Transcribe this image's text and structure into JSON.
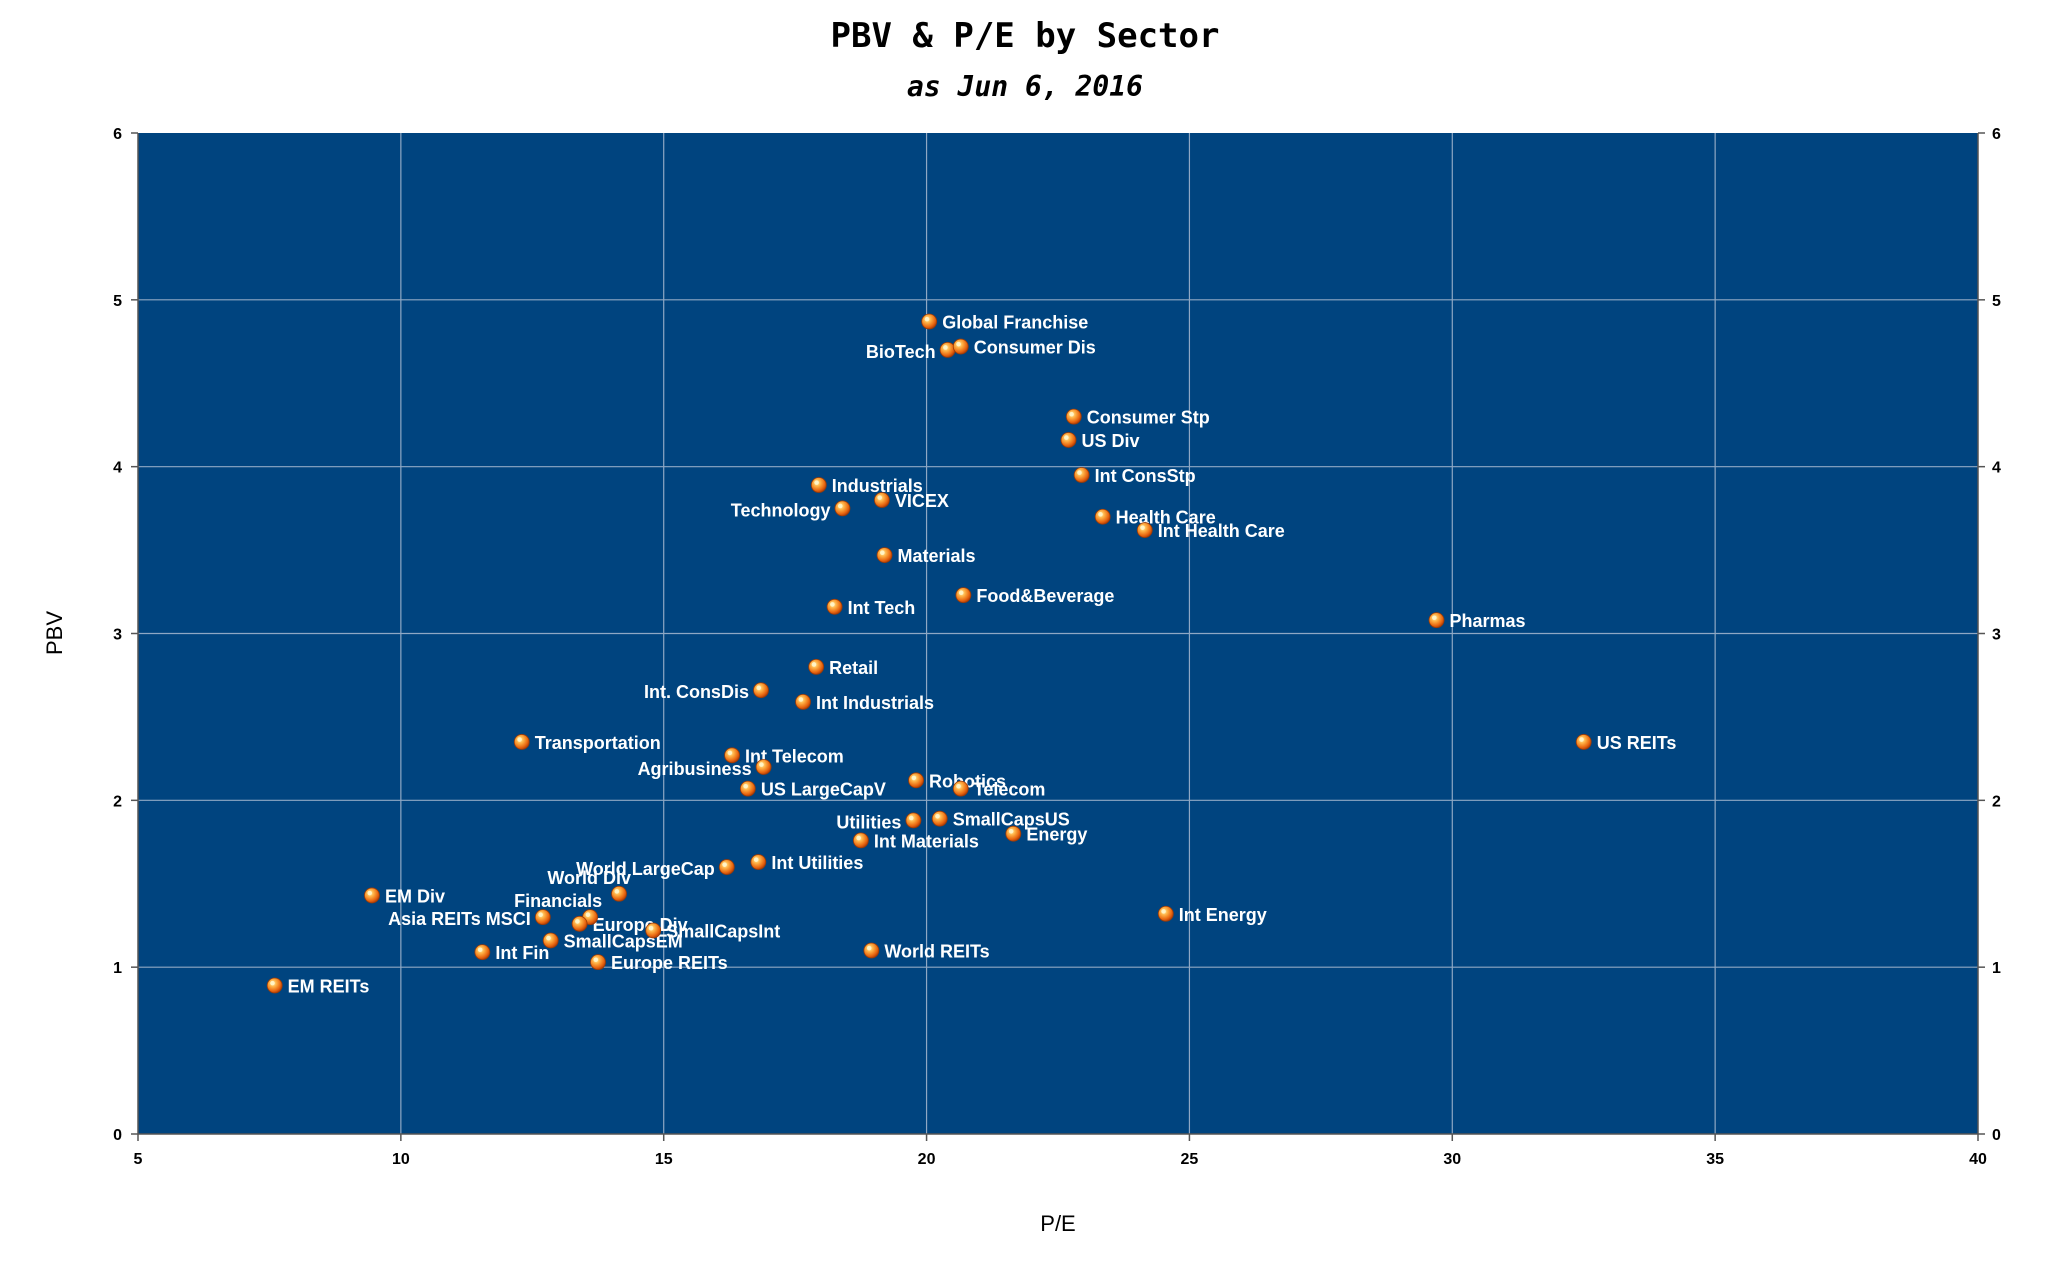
{
  "chart_data": {
    "type": "scatter",
    "title": "PBV & P/E by Sector",
    "subtitle": "as Jun 6, 2016",
    "xlabel": "P/E",
    "ylabel": "PBV",
    "xlim": [
      5,
      40
    ],
    "ylim": [
      0,
      6
    ],
    "xticks": [
      5,
      10,
      15,
      20,
      25,
      30,
      35,
      40
    ],
    "yticks": [
      0,
      1,
      2,
      3,
      4,
      5,
      6
    ],
    "secondary_y_axis": true,
    "grid": true,
    "legend": "none",
    "colors": {
      "plot_background": "#00447f",
      "grid": "#8fa8c4",
      "point_fill": "#f5821f",
      "point_highlight": "#ffe27a",
      "label": "#ffffff"
    },
    "points": [
      {
        "label": "Global Franchise",
        "x": 20.05,
        "y": 4.87,
        "label_side": "right"
      },
      {
        "label": "BioTech",
        "x": 20.4,
        "y": 4.7,
        "label_side": "left"
      },
      {
        "label": "Consumer Dis",
        "x": 20.65,
        "y": 4.72,
        "label_side": "right"
      },
      {
        "label": "Consumer Stp",
        "x": 22.8,
        "y": 4.3,
        "label_side": "right"
      },
      {
        "label": "US Div",
        "x": 22.7,
        "y": 4.16,
        "label_side": "right"
      },
      {
        "label": "Int ConsStp",
        "x": 22.95,
        "y": 3.95,
        "label_side": "right"
      },
      {
        "label": "Industrials",
        "x": 17.95,
        "y": 3.89,
        "label_side": "right"
      },
      {
        "label": "VICEX",
        "x": 19.15,
        "y": 3.8,
        "label_side": "right"
      },
      {
        "label": "Technology",
        "x": 18.4,
        "y": 3.75,
        "label_side": "left"
      },
      {
        "label": "Health Care",
        "x": 23.35,
        "y": 3.7,
        "label_side": "right"
      },
      {
        "label": "Int Health Care",
        "x": 24.15,
        "y": 3.62,
        "label_side": "right"
      },
      {
        "label": "Materials",
        "x": 19.2,
        "y": 3.47,
        "label_side": "right"
      },
      {
        "label": "Food&Beverage",
        "x": 20.7,
        "y": 3.23,
        "label_side": "right"
      },
      {
        "label": "Int Tech",
        "x": 18.25,
        "y": 3.16,
        "label_side": "right"
      },
      {
        "label": "Pharmas",
        "x": 29.7,
        "y": 3.08,
        "label_side": "right"
      },
      {
        "label": "Retail",
        "x": 17.9,
        "y": 2.8,
        "label_side": "right"
      },
      {
        "label": "Int. ConsDis",
        "x": 16.85,
        "y": 2.66,
        "label_side": "left"
      },
      {
        "label": "Int Industrials",
        "x": 17.65,
        "y": 2.59,
        "label_side": "right"
      },
      {
        "label": "Transportation",
        "x": 12.3,
        "y": 2.35,
        "label_side": "right"
      },
      {
        "label": "US REITs",
        "x": 32.5,
        "y": 2.35,
        "label_side": "right"
      },
      {
        "label": "Int Telecom",
        "x": 16.3,
        "y": 2.27,
        "label_side": "right"
      },
      {
        "label": "Agribusiness",
        "x": 16.9,
        "y": 2.2,
        "label_side": "left"
      },
      {
        "label": "Robotics",
        "x": 19.8,
        "y": 2.12,
        "label_side": "right"
      },
      {
        "label": "Telecom",
        "x": 20.65,
        "y": 2.07,
        "label_side": "right"
      },
      {
        "label": "US LargeCapV",
        "x": 16.6,
        "y": 2.07,
        "label_side": "right"
      },
      {
        "label": "SmallCapsUS",
        "x": 20.25,
        "y": 1.89,
        "label_side": "right"
      },
      {
        "label": "Utilities",
        "x": 19.75,
        "y": 1.88,
        "label_side": "left"
      },
      {
        "label": "Energy",
        "x": 21.65,
        "y": 1.8,
        "label_side": "right"
      },
      {
        "label": "Int Materials",
        "x": 18.75,
        "y": 1.76,
        "label_side": "right"
      },
      {
        "label": "World LargeCap",
        "x": 16.2,
        "y": 1.6,
        "label_side": "left"
      },
      {
        "label": "Int Utilities",
        "x": 16.8,
        "y": 1.63,
        "label_side": "right"
      },
      {
        "label": "World Div",
        "x": 14.15,
        "y": 1.44,
        "label_side": "above"
      },
      {
        "label": "EM Div",
        "x": 9.45,
        "y": 1.43,
        "label_side": "right"
      },
      {
        "label": "Financials",
        "x": 13.6,
        "y": 1.3,
        "label_side": "above"
      },
      {
        "label": "Asia REITs MSCI",
        "x": 12.7,
        "y": 1.3,
        "label_side": "left"
      },
      {
        "label": "Europe Div",
        "x": 13.4,
        "y": 1.26,
        "label_side": "right"
      },
      {
        "label": "SmallCapsInt",
        "x": 14.8,
        "y": 1.22,
        "label_side": "right"
      },
      {
        "label": "SmallCapsEM",
        "x": 12.85,
        "y": 1.16,
        "label_side": "right"
      },
      {
        "label": "Int Fin",
        "x": 11.55,
        "y": 1.09,
        "label_side": "right"
      },
      {
        "label": "World REITs",
        "x": 18.95,
        "y": 1.1,
        "label_side": "right"
      },
      {
        "label": "Europe REITs",
        "x": 13.75,
        "y": 1.03,
        "label_side": "right"
      },
      {
        "label": "Int Energy",
        "x": 24.55,
        "y": 1.32,
        "label_side": "right"
      },
      {
        "label": "EM REITs",
        "x": 7.6,
        "y": 0.89,
        "label_side": "right"
      }
    ]
  }
}
